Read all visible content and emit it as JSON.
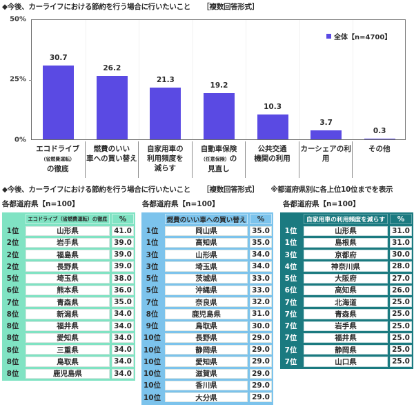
{
  "chart_data": {
    "type": "bar",
    "title": "◆今後、カーライフにおける節約を行う場合に行いたいこと",
    "subtitle": "［複数回答形式］",
    "categories": [
      "エコドライブ（省燃費運転）の徹底",
      "燃費のいい車への買い替え",
      "自家用車の利用頻度を減らす",
      "自動車保険（任意保険）の見直し",
      "公共交通機関の利用",
      "カーシェアの利用",
      "その他"
    ],
    "category_labels": [
      {
        "l1": "エコドライブ",
        "l2s": "（省燃費運転）",
        "l3": "の徹底"
      },
      {
        "l1": "燃費のいい",
        "l2": "車への買い替え"
      },
      {
        "l1": "自家用車の",
        "l2": "利用頻度を",
        "l3": "減らす"
      },
      {
        "l1": "自動車保険",
        "l2s": "（任意保険）",
        "l2": "の",
        "l3": "見直し"
      },
      {
        "l1": "公共交通",
        "l2": "機関の利用"
      },
      {
        "l1": "カーシェアの利用"
      },
      {
        "l1": "その他"
      }
    ],
    "series": [
      {
        "name": "全体【n=4700】",
        "values": [
          30.7,
          26.2,
          21.3,
          19.2,
          10.3,
          3.7,
          0.3
        ],
        "color": "#5a4ae3"
      }
    ],
    "yticks": [
      "50%",
      "25%",
      "0%"
    ],
    "ylim": [
      0,
      50
    ],
    "xlabel": "",
    "ylabel": "",
    "grid": false,
    "legend": {
      "label": "全体【n=4700】",
      "position": "top-right"
    }
  },
  "section2": {
    "title": "◆今後、カーライフにおける節約を行う場合に行いたいこと",
    "format": "［複数回答形式］",
    "note": "※都道府県別に各上位10位までを表示"
  },
  "tables": [
    {
      "subtitle": "各都道府県【n=100】",
      "color": "#80e3c3",
      "header": {
        "item": "エコドライブ（省燃費運転）の徹底",
        "pct": "%"
      },
      "rows": [
        {
          "rank": "1位",
          "pref": "山形県",
          "pct": "41.0"
        },
        {
          "rank": "2位",
          "pref": "岩手県",
          "pct": "39.0"
        },
        {
          "rank": "2位",
          "pref": "福島県",
          "pct": "39.0"
        },
        {
          "rank": "2位",
          "pref": "長野県",
          "pct": "39.0"
        },
        {
          "rank": "5位",
          "pref": "埼玉県",
          "pct": "38.0"
        },
        {
          "rank": "6位",
          "pref": "熊本県",
          "pct": "36.0"
        },
        {
          "rank": "7位",
          "pref": "青森県",
          "pct": "35.0"
        },
        {
          "rank": "8位",
          "pref": "新潟県",
          "pct": "34.0"
        },
        {
          "rank": "8位",
          "pref": "福井県",
          "pct": "34.0"
        },
        {
          "rank": "8位",
          "pref": "愛知県",
          "pct": "34.0"
        },
        {
          "rank": "8位",
          "pref": "三重県",
          "pct": "34.0"
        },
        {
          "rank": "8位",
          "pref": "鳥取県",
          "pct": "34.0"
        },
        {
          "rank": "8位",
          "pref": "鹿児島県",
          "pct": "34.0"
        }
      ]
    },
    {
      "subtitle": "各都道府県【n=100】",
      "color": "#7cc3ec",
      "header": {
        "item": "燃費のいい車への買い替え",
        "pct": "%"
      },
      "rows": [
        {
          "rank": "1位",
          "pref": "岡山県",
          "pct": "35.0"
        },
        {
          "rank": "1位",
          "pref": "高知県",
          "pct": "35.0"
        },
        {
          "rank": "3位",
          "pref": "山形県",
          "pct": "34.0"
        },
        {
          "rank": "3位",
          "pref": "埼玉県",
          "pct": "34.0"
        },
        {
          "rank": "5位",
          "pref": "茨城県",
          "pct": "33.0"
        },
        {
          "rank": "5位",
          "pref": "沖縄県",
          "pct": "33.0"
        },
        {
          "rank": "7位",
          "pref": "奈良県",
          "pct": "32.0"
        },
        {
          "rank": "8位",
          "pref": "鹿児島県",
          "pct": "31.0"
        },
        {
          "rank": "9位",
          "pref": "鳥取県",
          "pct": "30.0"
        },
        {
          "rank": "10位",
          "pref": "長野県",
          "pct": "29.0"
        },
        {
          "rank": "10位",
          "pref": "静岡県",
          "pct": "29.0"
        },
        {
          "rank": "10位",
          "pref": "愛知県",
          "pct": "29.0"
        },
        {
          "rank": "10位",
          "pref": "滋賀県",
          "pct": "29.0"
        },
        {
          "rank": "10位",
          "pref": "香川県",
          "pct": "29.0"
        },
        {
          "rank": "10位",
          "pref": "大分県",
          "pct": "29.0"
        }
      ]
    },
    {
      "subtitle": "各都道府県【n=100】",
      "color": "#1b7a80",
      "header": {
        "item": "自家用車の利用頻度を減らす",
        "pct": "%"
      },
      "rows": [
        {
          "rank": "1位",
          "pref": "山形県",
          "pct": "31.0"
        },
        {
          "rank": "1位",
          "pref": "島根県",
          "pct": "31.0"
        },
        {
          "rank": "3位",
          "pref": "京都府",
          "pct": "30.0"
        },
        {
          "rank": "4位",
          "pref": "神奈川県",
          "pct": "28.0"
        },
        {
          "rank": "5位",
          "pref": "大阪府",
          "pct": "27.0"
        },
        {
          "rank": "6位",
          "pref": "高知県",
          "pct": "26.0"
        },
        {
          "rank": "7位",
          "pref": "北海道",
          "pct": "25.0"
        },
        {
          "rank": "7位",
          "pref": "青森県",
          "pct": "25.0"
        },
        {
          "rank": "7位",
          "pref": "岩手県",
          "pct": "25.0"
        },
        {
          "rank": "7位",
          "pref": "福井県",
          "pct": "25.0"
        },
        {
          "rank": "7位",
          "pref": "静岡県",
          "pct": "25.0"
        },
        {
          "rank": "7位",
          "pref": "山口県",
          "pct": "25.0"
        }
      ]
    }
  ]
}
